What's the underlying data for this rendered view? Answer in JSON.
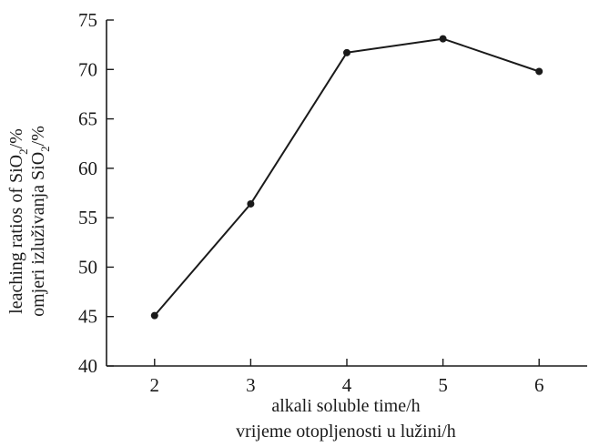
{
  "chart_data": {
    "type": "line",
    "x": [
      2,
      3,
      4,
      5,
      6
    ],
    "series": [
      {
        "values": [
          45.1,
          56.4,
          71.7,
          73.1,
          69.8
        ]
      }
    ],
    "x_ticks": [
      "2",
      "3",
      "4",
      "5",
      "6"
    ],
    "y_ticks": [
      "40",
      "45",
      "50",
      "55",
      "60",
      "65",
      "70",
      "75"
    ],
    "xlabel_line1": "alkali soluble time/h",
    "xlabel_line2": "vrijeme otopljenosti u lužini/h",
    "ylabel_line1_prefix": "leaching ratios of SiO",
    "ylabel_line1_sub": "2",
    "ylabel_line1_suffix": "/%",
    "ylabel_line2_prefix": "omjeri izluživanja SiO",
    "ylabel_line2_sub": "2",
    "ylabel_line2_suffix": "/%",
    "xlim": [
      1.5,
      6.5
    ],
    "ylim": [
      40,
      75
    ],
    "grid": false,
    "line_color": "#1a1a1a"
  }
}
